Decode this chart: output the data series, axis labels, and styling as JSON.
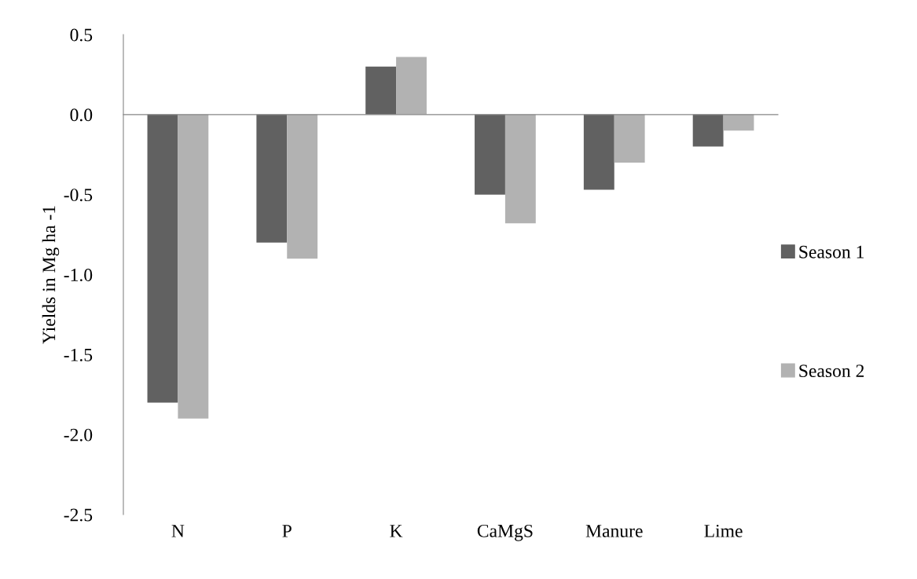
{
  "chart_data": {
    "type": "bar",
    "ylabel": "Yields in Mg ha -1",
    "categories": [
      "N",
      "P",
      "K",
      "CaMgS",
      "Manure",
      "Lime"
    ],
    "series": [
      {
        "name": "Season 1",
        "color": "#616161",
        "values": [
          -1.8,
          -0.8,
          0.3,
          -0.5,
          -0.47,
          -0.2
        ]
      },
      {
        "name": "Season 2",
        "color": "#b2b2b2",
        "values": [
          -1.9,
          -0.9,
          0.36,
          -0.68,
          -0.3,
          -0.1
        ]
      }
    ],
    "ylim": [
      -2.5,
      0.5
    ],
    "yticks": [
      {
        "value": 0.5,
        "label": "0.5"
      },
      {
        "value": 0.0,
        "label": "0.0"
      },
      {
        "value": -0.5,
        "label": "-0.5"
      },
      {
        "value": -1.0,
        "label": "-1.0"
      },
      {
        "value": -1.5,
        "label": "-1.5"
      },
      {
        "value": -2.0,
        "label": "-2.0"
      },
      {
        "value": -2.5,
        "label": "-2.5"
      }
    ],
    "legend": "right"
  }
}
